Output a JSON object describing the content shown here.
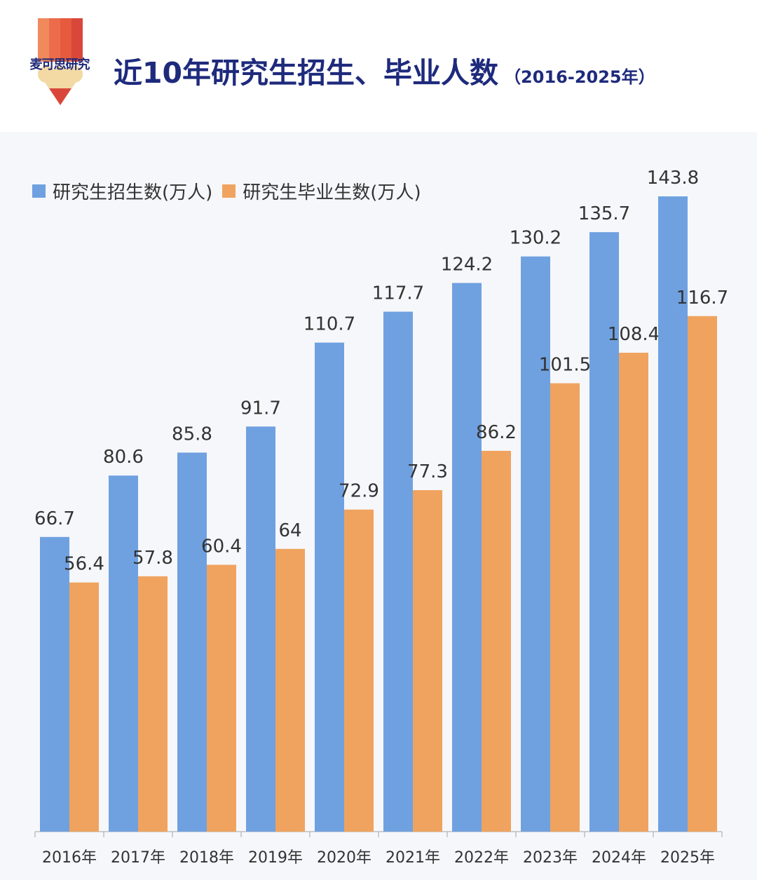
{
  "header": {
    "logo_text": "麦可思研究",
    "title": "近10年研究生招生、毕业人数",
    "subtitle": "（2016-2025年）"
  },
  "chart_data": {
    "type": "bar",
    "categories": [
      "2016年",
      "2017年",
      "2018年",
      "2019年",
      "2020年",
      "2021年",
      "2022年",
      "2023年",
      "2024年",
      "2025年"
    ],
    "series": [
      {
        "name": "研究生招生数(万人)",
        "color": "#6fa1e0",
        "values": [
          66.7,
          80.6,
          85.8,
          91.7,
          110.7,
          117.7,
          124.2,
          130.2,
          135.7,
          143.8
        ]
      },
      {
        "name": "研究生毕业生数(万人)",
        "color": "#f0a35e",
        "values": [
          56.4,
          57.8,
          60.4,
          64,
          72.9,
          77.3,
          86.2,
          101.5,
          108.4,
          116.7
        ]
      }
    ],
    "ylim": [
      0,
      150
    ],
    "grid": false,
    "legend_position": "top-left"
  }
}
